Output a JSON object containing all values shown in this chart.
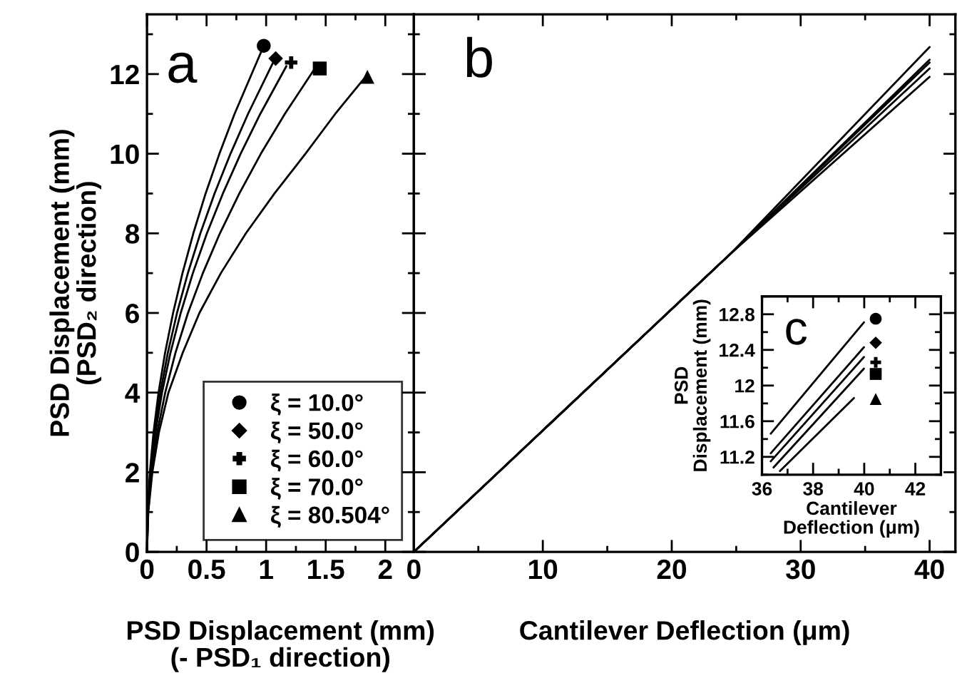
{
  "chart_data": [
    {
      "type": "line",
      "xlabel": "PSD Displacement (mm)\n(- PSD₁ direction)",
      "ylabel": "PSD Displacement (mm)\n(PSD₂ direction)",
      "xlim": [
        0,
        2.24
      ],
      "ylim": [
        0,
        13.5
      ],
      "xticks": [
        0,
        0.5,
        1,
        1.5,
        2
      ],
      "yticks": [
        0,
        2,
        4,
        6,
        8,
        10,
        12
      ],
      "legend": "bottom right",
      "annotations": [
        "a"
      ],
      "series": [
        {
          "color": "#000000",
          "x": [
            0,
            0.006,
            0.024,
            0.055,
            0.097,
            0.152,
            0.219,
            0.298,
            0.389,
            0.492,
            0.608,
            0.735,
            0.96
          ],
          "values": [
            0,
            1,
            2,
            3,
            4,
            5,
            6,
            7,
            8,
            9,
            10,
            11,
            12.57
          ]
        },
        {
          "color": "#000000",
          "x": [
            0,
            0.007,
            0.028,
            0.063,
            0.112,
            0.175,
            0.252,
            0.343,
            0.448,
            0.567,
            0.701,
            0.848,
            1.06
          ],
          "values": [
            0,
            1,
            2,
            3,
            4,
            5,
            6,
            7,
            8,
            9,
            10,
            11,
            12.3
          ]
        },
        {
          "color": "#000000",
          "x": [
            0,
            0.008,
            0.031,
            0.071,
            0.126,
            0.197,
            0.283,
            0.385,
            0.503,
            0.637,
            0.786,
            0.951,
            1.17
          ],
          "values": [
            0,
            1,
            2,
            3,
            4,
            5,
            6,
            7,
            8,
            9,
            10,
            11,
            12.2
          ]
        },
        {
          "color": "#000000",
          "x": [
            0,
            0.01,
            0.038,
            0.086,
            0.153,
            0.239,
            0.344,
            0.469,
            0.612,
            0.775,
            0.956,
            1.157,
            1.4
          ],
          "values": [
            0,
            1,
            2,
            3,
            4,
            5,
            6,
            7,
            8,
            9,
            10,
            11,
            12.1
          ]
        },
        {
          "color": "#000000",
          "x": [
            0,
            0.011,
            0.045,
            0.1,
            0.18,
            0.3,
            0.44,
            0.62,
            0.83,
            1.07,
            1.33,
            1.58,
            1.82
          ],
          "values": [
            0,
            1,
            2,
            3,
            4,
            5,
            6,
            7,
            8,
            9,
            10,
            11,
            11.88
          ]
        },
        {
          "type": "scatter",
          "name": "ξ = 10.0°",
          "marker": "circle",
          "color": "#000000",
          "x": [
            0.98
          ],
          "values": [
            12.71
          ]
        },
        {
          "type": "scatter",
          "name": "ξ = 50.0°",
          "marker": "diamond",
          "color": "#000000",
          "x": [
            1.08
          ],
          "values": [
            12.39
          ]
        },
        {
          "type": "scatter",
          "name": "ξ = 60.0°",
          "marker": "cross",
          "color": "#000000",
          "x": [
            1.21
          ],
          "values": [
            12.29
          ]
        },
        {
          "type": "scatter",
          "name": "ξ = 70.0°",
          "marker": "square",
          "color": "#000000",
          "x": [
            1.45
          ],
          "values": [
            12.14
          ]
        },
        {
          "type": "scatter",
          "name": "ξ = 80.504°",
          "marker": "triangle",
          "color": "#000000",
          "x": [
            1.85
          ],
          "values": [
            11.93
          ]
        }
      ]
    },
    {
      "type": "line",
      "xlabel": "Cantilever Deflection (μm)",
      "xlim": [
        0,
        42
      ],
      "ylim": [
        0,
        13.5
      ],
      "xticks": [
        0,
        10,
        20,
        30,
        40
      ],
      "yticks": [
        0,
        2,
        4,
        6,
        8,
        10,
        12
      ],
      "tick_labels": "x",
      "annotations": [
        "b"
      ],
      "series": [
        {
          "color": "#000000",
          "x": [
            0,
            24.6,
            40
          ],
          "values": [
            0,
            7.5,
            12.68
          ]
        },
        {
          "color": "#000000",
          "x": [
            0,
            24.6,
            40
          ],
          "values": [
            0,
            7.5,
            12.36
          ]
        },
        {
          "color": "#000000",
          "x": [
            0,
            24.6,
            40
          ],
          "values": [
            0,
            7.5,
            12.29
          ]
        },
        {
          "color": "#000000",
          "x": [
            0,
            24.6,
            40
          ],
          "values": [
            0,
            7.5,
            12.14
          ]
        },
        {
          "color": "#000000",
          "x": [
            0,
            24.6,
            40
          ],
          "values": [
            0,
            7.5,
            11.93
          ]
        }
      ]
    },
    {
      "type": "line",
      "xlabel": "Cantilever\nDeflection (μm)",
      "ylabel": "PSD\nDisplacement (mm)",
      "xlim": [
        36,
        43
      ],
      "ylim": [
        11,
        13
      ],
      "xticks": [
        36,
        38,
        40,
        42
      ],
      "yticks": [
        11.2,
        11.6,
        12,
        12.4,
        12.8
      ],
      "annotations": [
        "c"
      ],
      "series": [
        {
          "color": "#000000",
          "x": [
            36.34,
            39.99
          ],
          "values": [
            11.46,
            12.71
          ]
        },
        {
          "color": "#000000",
          "x": [
            36.34,
            39.99
          ],
          "values": [
            11.24,
            12.43
          ]
        },
        {
          "color": "#000000",
          "x": [
            36.34,
            39.99
          ],
          "values": [
            11.15,
            12.32
          ]
        },
        {
          "color": "#000000",
          "x": [
            36.45,
            39.99
          ],
          "values": [
            11.08,
            12.19
          ]
        },
        {
          "color": "#000000",
          "x": [
            36.7,
            39.6
          ],
          "values": [
            11.04,
            11.86
          ]
        },
        {
          "type": "scatter",
          "marker": "circle",
          "color": "#000000",
          "x": [
            40.45
          ],
          "values": [
            12.75
          ]
        },
        {
          "type": "scatter",
          "marker": "diamond",
          "color": "#000000",
          "x": [
            40.45
          ],
          "values": [
            12.48
          ]
        },
        {
          "type": "scatter",
          "marker": "cross",
          "color": "#000000",
          "x": [
            40.45
          ],
          "values": [
            12.26
          ]
        },
        {
          "type": "scatter",
          "marker": "square",
          "color": "#000000",
          "x": [
            40.45
          ],
          "values": [
            12.13
          ]
        },
        {
          "type": "scatter",
          "marker": "triangle",
          "color": "#000000",
          "x": [
            40.45
          ],
          "values": [
            11.85
          ]
        }
      ]
    }
  ]
}
